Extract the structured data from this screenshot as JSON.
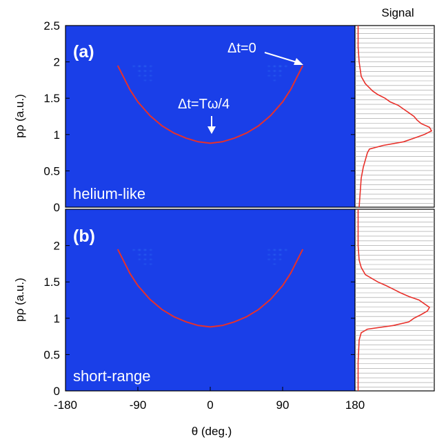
{
  "chart_data": [
    {
      "type": "heatmap",
      "panel": "(a)",
      "label": "helium-like",
      "xlabel": "θ (deg.)",
      "ylabel": "pρ (a.u.)",
      "xlim": [
        -180,
        180
      ],
      "ylim": [
        0,
        2.5
      ],
      "xticks": [
        "-180",
        "-90",
        "0",
        "90",
        "180"
      ],
      "yticks": [
        "0",
        "0.5",
        "1",
        "1.5",
        "2",
        "2.5"
      ],
      "colors": {
        "background": "#1a3fe8",
        "curve": "#e8302a"
      },
      "curve": {
        "theta": [
          -115,
          -100,
          -90,
          -75,
          -60,
          -45,
          -30,
          -15,
          0,
          15,
          30,
          45,
          60,
          75,
          90,
          100,
          115
        ],
        "p": [
          1.95,
          1.62,
          1.45,
          1.26,
          1.12,
          1.02,
          0.95,
          0.9,
          0.88,
          0.9,
          0.95,
          1.02,
          1.12,
          1.26,
          1.45,
          1.62,
          1.95
        ]
      },
      "annotations": [
        {
          "text": "Δt=0",
          "theta": 120,
          "p": 1.95
        },
        {
          "text": "Δt=Tω/4",
          "theta": 0,
          "p": 1.0
        }
      ],
      "signal_title": "Signal",
      "signal": {
        "p": [
          0.0,
          0.2,
          0.4,
          0.55,
          0.65,
          0.75,
          0.8,
          0.85,
          0.9,
          0.95,
          1.0,
          1.05,
          1.1,
          1.15,
          1.2,
          1.25,
          1.3,
          1.35,
          1.4,
          1.45,
          1.5,
          1.55,
          1.6,
          1.7,
          1.8,
          1.9,
          2.0,
          2.2,
          2.5
        ],
        "value": [
          0.02,
          0.03,
          0.04,
          0.06,
          0.08,
          0.1,
          0.12,
          0.25,
          0.45,
          0.55,
          0.65,
          0.72,
          0.7,
          0.62,
          0.58,
          0.55,
          0.5,
          0.45,
          0.4,
          0.32,
          0.27,
          0.2,
          0.15,
          0.08,
          0.04,
          0.03,
          0.02,
          0.01,
          0.01
        ]
      }
    },
    {
      "type": "heatmap",
      "panel": "(b)",
      "label": "short-range",
      "xlabel": "θ (deg.)",
      "ylabel": "pρ (a.u.)",
      "xlim": [
        -180,
        180
      ],
      "ylim": [
        0,
        2.5
      ],
      "xticks": [
        "-180",
        "-90",
        "0",
        "90",
        "180"
      ],
      "yticks": [
        "0",
        "0.5",
        "1",
        "1.5",
        "2"
      ],
      "colors": {
        "background": "#1a3fe8",
        "curve": "#e8302a"
      },
      "curve": {
        "theta": [
          -115,
          -100,
          -90,
          -75,
          -60,
          -45,
          -30,
          -15,
          0,
          15,
          30,
          45,
          60,
          75,
          90,
          100,
          115
        ],
        "p": [
          1.95,
          1.62,
          1.45,
          1.26,
          1.12,
          1.02,
          0.95,
          0.9,
          0.88,
          0.9,
          0.95,
          1.02,
          1.12,
          1.26,
          1.45,
          1.62,
          1.95
        ]
      },
      "signal": {
        "p": [
          0.0,
          0.4,
          0.7,
          0.8,
          0.85,
          0.9,
          0.95,
          1.0,
          1.05,
          1.1,
          1.15,
          1.2,
          1.25,
          1.3,
          1.35,
          1.4,
          1.45,
          1.5,
          1.55,
          1.6,
          1.7,
          1.8,
          2.0,
          2.5
        ],
        "value": [
          0.01,
          0.01,
          0.02,
          0.04,
          0.1,
          0.35,
          0.5,
          0.55,
          0.62,
          0.68,
          0.7,
          0.65,
          0.6,
          0.5,
          0.42,
          0.35,
          0.28,
          0.2,
          0.14,
          0.08,
          0.04,
          0.02,
          0.01,
          0.01
        ]
      }
    }
  ]
}
